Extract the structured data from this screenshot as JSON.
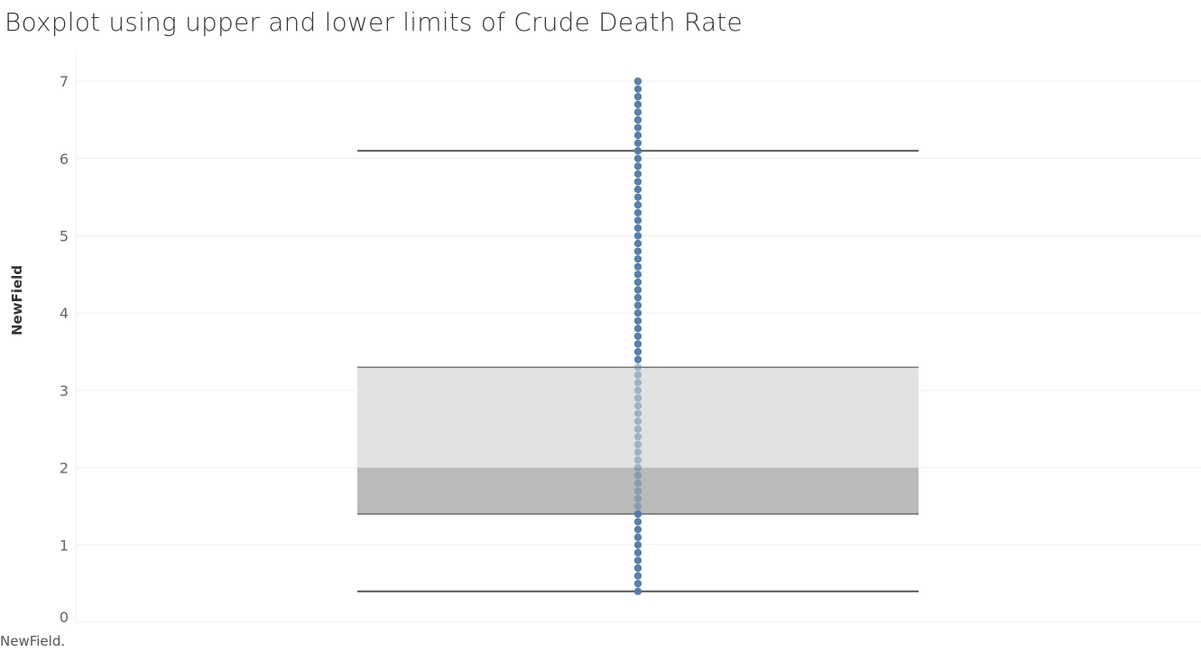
{
  "chart_data": {
    "type": "boxplot",
    "title": "Boxplot using upper and lower limits of Crude Death Rate",
    "ylabel": "NewField",
    "xlabel": "",
    "ylim": [
      0,
      7.4
    ],
    "yticks": [
      0,
      1,
      2,
      3,
      4,
      5,
      6,
      7
    ],
    "grid": true,
    "box": {
      "lower_whisker": 0.4,
      "q1": 1.4,
      "median": 2.0,
      "q3": 3.3,
      "upper_whisker": 6.1
    },
    "points": [
      0.4,
      0.5,
      0.6,
      0.7,
      0.8,
      0.9,
      1.0,
      1.1,
      1.2,
      1.3,
      1.4,
      1.5,
      1.6,
      1.7,
      1.8,
      1.9,
      2.0,
      2.1,
      2.2,
      2.3,
      2.4,
      2.5,
      2.6,
      2.7,
      2.8,
      2.9,
      3.0,
      3.1,
      3.2,
      3.3,
      3.4,
      3.5,
      3.6,
      3.7,
      3.8,
      3.9,
      4.0,
      4.1,
      4.2,
      4.3,
      4.4,
      4.5,
      4.6,
      4.7,
      4.8,
      4.9,
      5.0,
      5.1,
      5.2,
      5.3,
      5.4,
      5.5,
      5.6,
      5.7,
      5.8,
      5.9,
      6.0,
      6.1,
      6.2,
      6.3,
      6.4,
      6.5,
      6.6,
      6.7,
      6.8,
      6.9,
      7.0
    ],
    "colors": {
      "points": "#4e79a7",
      "box_upper": "#e2e2e2",
      "box_lower": "#bababa",
      "whisker": "#555555"
    }
  },
  "footer": "NewField."
}
